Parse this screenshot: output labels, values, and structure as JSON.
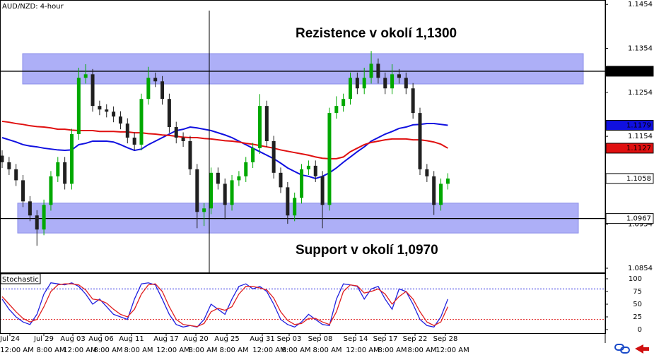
{
  "chart_data": [
    {
      "type": "candlestick",
      "title": "AUD/NZD: 4-hour",
      "open": [
        1.111,
        1.1095,
        1.1079,
        1.1054,
        1.1006,
        1.0974,
        1.0942,
        1.0998,
        1.1063,
        1.1095,
        1.1046,
        1.1159,
        1.1287,
        1.1295,
        1.1223,
        1.1215,
        1.121,
        1.1199,
        1.1183,
        1.1151,
        1.1135,
        1.1239,
        1.1287,
        1.1279,
        1.1239,
        1.1175,
        1.1151,
        1.1143,
        1.1079,
        1.0982,
        1.099,
        1.1071,
        1.1046,
        1.0998,
        1.1054,
        1.1063,
        1.1095,
        1.1127,
        1.1223,
        1.1143,
        1.1071,
        1.1038,
        1.0974,
        1.1014,
        1.1079,
        1.1087,
        1.1063,
        1.0998,
        1.1207,
        1.1223,
        1.1239,
        1.1287,
        1.1263,
        1.1287,
        1.1319,
        1.1287,
        1.1263,
        1.1295,
        1.1287,
        1.1263,
        1.1207,
        1.1079,
        1.1063,
        1.0998,
        1.1046
      ],
      "high": [
        1.1122,
        1.1107,
        1.1091,
        1.1066,
        1.1018,
        1.0986,
        1.101,
        1.1075,
        1.1107,
        1.1107,
        1.1171,
        1.131,
        1.1318,
        1.1307,
        1.1235,
        1.1227,
        1.1222,
        1.1211,
        1.1195,
        1.1163,
        1.1251,
        1.1312,
        1.1299,
        1.1291,
        1.1251,
        1.1187,
        1.1163,
        1.1155,
        1.1091,
        1.1002,
        1.1083,
        1.1083,
        1.1058,
        1.1066,
        1.1075,
        1.1107,
        1.1139,
        1.125,
        1.1235,
        1.1155,
        1.1083,
        1.105,
        1.1026,
        1.1091,
        1.1099,
        1.1099,
        1.1075,
        1.1219,
        1.1245,
        1.1251,
        1.1299,
        1.1299,
        1.131,
        1.1348,
        1.1331,
        1.1299,
        1.1318,
        1.1307,
        1.1299,
        1.1275,
        1.1219,
        1.1091,
        1.1075,
        1.1058,
        1.107
      ],
      "low": [
        1.1082,
        1.1066,
        1.1041,
        1.0993,
        1.0961,
        1.0905,
        1.0929,
        1.0985,
        1.105,
        1.1033,
        1.1033,
        1.1146,
        1.1274,
        1.121,
        1.1202,
        1.1197,
        1.1186,
        1.117,
        1.1138,
        1.1122,
        1.1122,
        1.1226,
        1.1266,
        1.1226,
        1.1162,
        1.1138,
        1.113,
        1.1066,
        1.0945,
        1.095,
        1.0977,
        1.1033,
        1.0965,
        1.0985,
        1.1041,
        1.105,
        1.1082,
        1.1114,
        1.113,
        1.1058,
        1.1025,
        1.0955,
        1.0961,
        1.1001,
        1.1066,
        1.105,
        1.0945,
        1.0985,
        1.1194,
        1.121,
        1.1226,
        1.125,
        1.125,
        1.1274,
        1.1274,
        1.125,
        1.125,
        1.1274,
        1.125,
        1.1194,
        1.1066,
        1.105,
        1.0975,
        1.0985,
        1.1033
      ],
      "close": [
        1.1095,
        1.1079,
        1.1054,
        1.1006,
        1.0974,
        1.0942,
        1.0998,
        1.1063,
        1.1095,
        1.1046,
        1.1159,
        1.1287,
        1.1295,
        1.1223,
        1.1215,
        1.121,
        1.1199,
        1.1183,
        1.1151,
        1.1135,
        1.1239,
        1.1287,
        1.1279,
        1.1239,
        1.1175,
        1.1151,
        1.1143,
        1.1079,
        1.0982,
        1.099,
        1.1071,
        1.1046,
        1.0998,
        1.1054,
        1.1063,
        1.1095,
        1.1127,
        1.1223,
        1.1143,
        1.1071,
        1.1038,
        1.0974,
        1.1014,
        1.1079,
        1.1087,
        1.1063,
        1.0998,
        1.1207,
        1.1223,
        1.1239,
        1.1287,
        1.1263,
        1.1287,
        1.1319,
        1.1287,
        1.1263,
        1.1295,
        1.1287,
        1.1263,
        1.1207,
        1.1079,
        1.1063,
        1.0998,
        1.1046,
        1.1058
      ],
      "up_color": "#00a800",
      "down_color": "#202020",
      "series": [
        {
          "color": "#1010e0",
          "values": [
            1.1151,
            1.1146,
            1.1141,
            1.1135,
            1.1132,
            1.113,
            1.1127,
            1.1125,
            1.1123,
            1.1122,
            1.1123,
            1.1135,
            1.1138,
            1.1143,
            1.1143,
            1.1143,
            1.1141,
            1.1135,
            1.1128,
            1.1122,
            1.1125,
            1.1135,
            1.1143,
            1.1151,
            1.1159,
            1.1167,
            1.117,
            1.1175,
            1.1173,
            1.117,
            1.1167,
            1.1162,
            1.1157,
            1.1151,
            1.1143,
            1.1135,
            1.1127,
            1.1119,
            1.1111,
            1.1103,
            1.1093,
            1.1082,
            1.1074,
            1.1066,
            1.1063,
            1.1058,
            1.1063,
            1.1071,
            1.1082,
            1.1095,
            1.1107,
            1.1119,
            1.113,
            1.1143,
            1.1151,
            1.1159,
            1.1165,
            1.1172,
            1.1175,
            1.118,
            1.1181,
            1.1183,
            1.1183,
            1.1181,
            1.1179
          ]
        },
        {
          "color": "#e01010",
          "values": [
            1.1188,
            1.1186,
            1.1183,
            1.1181,
            1.1178,
            1.1176,
            1.1175,
            1.1173,
            1.117,
            1.117,
            1.1168,
            1.1167,
            1.1167,
            1.1167,
            1.1165,
            1.1165,
            1.1165,
            1.1164,
            1.1164,
            1.1162,
            1.1162,
            1.116,
            1.1159,
            1.1157,
            1.1156,
            1.1154,
            1.1152,
            1.1151,
            1.1151,
            1.1149,
            1.1148,
            1.1146,
            1.1144,
            1.1143,
            1.1141,
            1.1138,
            1.1136,
            1.1133,
            1.113,
            1.1127,
            1.1123,
            1.112,
            1.1117,
            1.1114,
            1.1111,
            1.1107,
            1.1104,
            1.1103,
            1.1103,
            1.1107,
            1.1119,
            1.1127,
            1.1135,
            1.114,
            1.1143,
            1.1146,
            1.1148,
            1.1148,
            1.1148,
            1.1146,
            1.1146,
            1.1144,
            1.1141,
            1.1136,
            1.1127
          ]
        }
      ],
      "bands": [
        {
          "low": 1.1273,
          "high": 1.1342
        },
        {
          "low": 1.0934,
          "high": 1.1002
        }
      ],
      "band_color": "#adaff7",
      "annotations": [
        "Rezistence v okolí 1,1300",
        "Support v okolí 1,0970"
      ],
      "price_tags": [
        {
          "value": 1.1302,
          "background": "#000000",
          "text_color": "#ffffff",
          "line": true
        },
        {
          "value": 1.1179,
          "background": "#1010e0",
          "text_color": "#ffffff",
          "line": false
        },
        {
          "value": 1.1127,
          "background": "#e01010",
          "text_color": "#ffffff",
          "line": false
        },
        {
          "value": 1.1058,
          "background": "#ffffff",
          "text_color": "#000000",
          "line": false
        },
        {
          "value": 1.0967,
          "background": "#ffffff",
          "text_color": "#000000",
          "line": true
        }
      ],
      "ylim": [
        1.0846,
        1.1464
      ],
      "yticks": [
        1.0854,
        1.0954,
        1.1054,
        1.1154,
        1.1254,
        1.1354,
        1.1454
      ],
      "date_labels": [
        "Jul 24",
        "Jul 29",
        "Aug 03",
        "Aug 06",
        "Aug 11",
        "Aug 17",
        "Aug 20",
        "Aug 25",
        "Aug 31",
        "Sep 03",
        "Sep 08",
        "Sep 14",
        "Sep 17",
        "Sep 22",
        "Sep 28"
      ],
      "time_labels": [
        "12:00 AM",
        "8:00 AM",
        "12:00 AM",
        "8:00 AM",
        "8:00 AM",
        "12:00 AM",
        "8:00 AM",
        "8:00 AM",
        "12:00 AM",
        "8:00 AM",
        "8:00 AM",
        "12:00 AM",
        "8:00 AM",
        "8:00 AM",
        "12:00 AM"
      ]
    },
    {
      "type": "line",
      "title": "Stochastic",
      "series": [
        {
          "color": "#2020e0",
          "values": [
            60,
            40,
            25,
            15,
            10,
            30,
            70,
            92,
            90,
            88,
            92,
            85,
            70,
            50,
            60,
            45,
            30,
            25,
            20,
            60,
            90,
            92,
            88,
            60,
            30,
            10,
            5,
            8,
            5,
            20,
            50,
            40,
            30,
            60,
            85,
            90,
            80,
            85,
            75,
            50,
            20,
            10,
            5,
            15,
            30,
            20,
            10,
            8,
            60,
            90,
            88,
            85,
            60,
            80,
            85,
            60,
            40,
            80,
            75,
            50,
            20,
            8,
            5,
            25,
            60
          ]
        },
        {
          "color": "#e02020",
          "values": [
            65,
            50,
            35,
            22,
            15,
            20,
            45,
            75,
            88,
            90,
            90,
            88,
            78,
            60,
            58,
            52,
            40,
            30,
            25,
            40,
            70,
            88,
            90,
            75,
            45,
            20,
            10,
            8,
            6,
            12,
            35,
            42,
            38,
            45,
            70,
            85,
            85,
            82,
            78,
            62,
            35,
            18,
            10,
            12,
            22,
            22,
            15,
            10,
            35,
            75,
            88,
            86,
            72,
            75,
            80,
            70,
            50,
            65,
            75,
            60,
            35,
            15,
            8,
            15,
            45
          ]
        }
      ],
      "levels": [
        {
          "value": 80,
          "color": "#2020e0"
        },
        {
          "value": 20,
          "color": "#e02020"
        }
      ],
      "ylim": [
        0,
        100
      ],
      "yticks": [
        0,
        25,
        50,
        75,
        100
      ]
    }
  ]
}
